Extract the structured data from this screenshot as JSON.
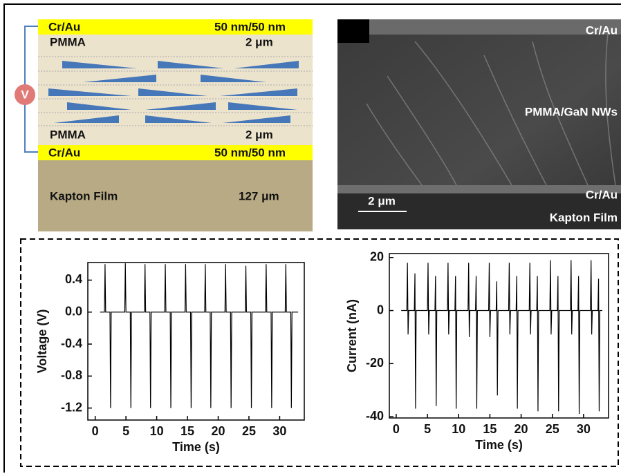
{
  "diagram": {
    "voltage_symbol": "V",
    "layers": [
      {
        "label": "Cr/Au",
        "thickness": "50 nm/50 nm"
      },
      {
        "label": "PMMA",
        "thickness": "2 μm"
      },
      {
        "label": "PMMA",
        "thickness": "2 μm"
      },
      {
        "label": "Cr/Au",
        "thickness": "50 nm/50 nm"
      },
      {
        "label": "Kapton Film",
        "thickness": "127 μm"
      }
    ]
  },
  "sem_image": {
    "labels": [
      "Cr/Au",
      "PMMA/GaN NWs",
      "Cr/Au",
      "Kapton Film"
    ],
    "scale_bar": "2 μm"
  },
  "chart_data": [
    {
      "type": "line",
      "x_label": "Time (s)",
      "y_label": "Voltage (V)",
      "color": "#000000",
      "xlim": [
        -1.2,
        34
      ],
      "ylim": [
        -1.35,
        0.62
      ],
      "xticks": [
        0,
        5,
        10,
        15,
        20,
        25,
        30
      ],
      "yticks": [
        0.4,
        {
          "value": 0,
          "label": "0.0"
        },
        -0.4,
        -0.8,
        -1.2
      ],
      "x": [
        0.8,
        1.5,
        1.6,
        1.7,
        2.4,
        2.5,
        2.6,
        4.8,
        4.9,
        5.0,
        5.7,
        5.8,
        5.9,
        8.0,
        8.1,
        8.2,
        8.9,
        9.0,
        9.1,
        11.3,
        11.4,
        11.5,
        12.2,
        12.3,
        12.4,
        14.6,
        14.7,
        14.8,
        15.5,
        15.6,
        15.7,
        17.8,
        17.9,
        18.0,
        18.7,
        18.8,
        18.9,
        21.1,
        21.2,
        21.3,
        22.0,
        22.1,
        22.2,
        24.4,
        24.5,
        24.6,
        25.3,
        25.4,
        25.5,
        27.7,
        27.8,
        27.9,
        28.6,
        28.7,
        28.8,
        30.9,
        31.0,
        31.1,
        31.8,
        31.9,
        32.0,
        33.0
      ],
      "values": [
        0,
        0,
        0.6,
        0,
        0,
        -1.2,
        0,
        0,
        0.61,
        0,
        0,
        -1.2,
        0,
        0,
        0.6,
        0,
        0,
        -1.2,
        0,
        0,
        0.6,
        0,
        0,
        -1.2,
        0,
        0,
        0.6,
        0,
        0,
        -1.2,
        0,
        0,
        0.6,
        0,
        0,
        -1.2,
        0,
        0,
        0.6,
        0,
        0,
        -1.2,
        0,
        0,
        0.58,
        0,
        0,
        -1.2,
        0,
        0,
        0.6,
        0,
        0,
        -1.2,
        0,
        0,
        0.6,
        0,
        0,
        -1.2,
        0,
        0
      ]
    },
    {
      "type": "line",
      "x_label": "Time (s)",
      "y_label": "Current (nA)",
      "color": "#000000",
      "xlim": [
        -1.1,
        34
      ],
      "ylim": [
        -40.5,
        21.5
      ],
      "xticks": [
        0,
        5,
        10,
        15,
        20,
        25,
        30
      ],
      "yticks": [
        20,
        0,
        -20,
        -40
      ],
      "x": [
        0.8,
        1.7,
        1.8,
        1.9,
        2.0,
        2.9,
        3.0,
        3.1,
        3.2,
        5.0,
        5.1,
        5.2,
        5.3,
        6.2,
        6.3,
        6.4,
        6.5,
        8.2,
        8.3,
        8.4,
        8.5,
        9.4,
        9.5,
        9.6,
        9.7,
        11.5,
        11.6,
        11.7,
        11.8,
        12.7,
        12.8,
        12.9,
        13.0,
        14.8,
        14.9,
        15.0,
        15.1,
        16.0,
        16.1,
        16.2,
        16.3,
        18.0,
        18.1,
        18.2,
        18.3,
        19.2,
        19.3,
        19.4,
        19.5,
        21.3,
        21.4,
        21.5,
        21.6,
        22.5,
        22.6,
        22.7,
        22.8,
        24.6,
        24.7,
        24.8,
        24.9,
        25.8,
        25.9,
        26.0,
        26.1,
        27.9,
        28.0,
        28.1,
        28.2,
        29.1,
        29.2,
        29.3,
        29.4,
        31.1,
        31.2,
        31.3,
        31.4,
        32.3,
        32.4,
        32.5,
        32.6,
        33.0
      ],
      "values": [
        0,
        0,
        18,
        -9,
        0,
        0,
        14,
        -37,
        0,
        0,
        18,
        -9,
        0,
        0,
        13,
        -36,
        0,
        0,
        18,
        -9,
        0,
        0,
        13,
        -37,
        0,
        0,
        18,
        -10,
        0,
        0,
        13,
        -37,
        0,
        0,
        18,
        -10,
        0,
        0,
        11,
        -32,
        0,
        0,
        18,
        -9,
        0,
        0,
        13,
        -37,
        0,
        0,
        18,
        -9,
        0,
        0,
        13,
        -38,
        0,
        0,
        19,
        -9,
        0,
        0,
        13,
        -38,
        0,
        0,
        19,
        -9,
        0,
        0,
        13,
        -39,
        0,
        0,
        19,
        -9,
        0,
        0,
        12,
        -38,
        0,
        0
      ]
    }
  ]
}
